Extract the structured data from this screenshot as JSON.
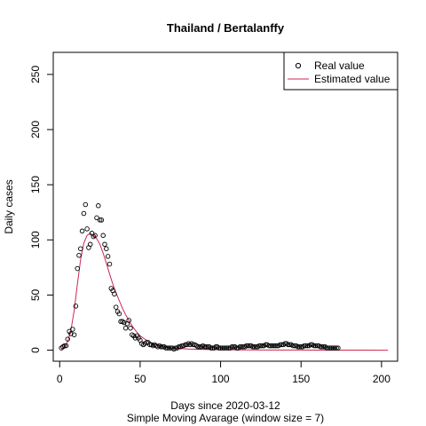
{
  "chart_data": {
    "type": "scatter",
    "title": "Thailand / Bertalanffy",
    "xlabel": "Days since 2020-03-12",
    "xlabel2": "Simple Moving Avarage (window size = 7)",
    "ylabel": "Daily cases",
    "xlim": [
      -4,
      210
    ],
    "ylim": [
      -10,
      270
    ],
    "xticks": [
      0,
      50,
      100,
      150,
      200
    ],
    "yticks": [
      0,
      50,
      100,
      150,
      200,
      250
    ],
    "grid": false,
    "legend_position": "top-right",
    "series": [
      {
        "name": "Real value",
        "style": "points",
        "color": "#000000",
        "x": [
          1,
          2,
          3,
          4,
          5,
          6,
          7,
          8,
          9,
          10,
          11,
          12,
          13,
          14,
          15,
          16,
          17,
          18,
          19,
          20,
          21,
          22,
          23,
          24,
          25,
          26,
          27,
          28,
          29,
          30,
          31,
          32,
          33,
          34,
          35,
          36,
          37,
          38,
          39,
          40,
          41,
          42,
          43,
          44,
          45,
          46,
          47,
          48,
          49,
          50,
          51,
          52,
          53,
          54,
          55,
          56,
          57,
          58,
          59,
          60,
          61,
          62,
          63,
          64,
          65,
          66,
          67,
          68,
          69,
          70,
          71,
          72,
          73,
          74,
          75,
          76,
          77,
          78,
          79,
          80,
          81,
          82,
          83,
          84,
          85,
          86,
          87,
          88,
          89,
          90,
          91,
          92,
          93,
          94,
          95,
          96,
          97,
          98,
          99,
          100,
          101,
          102,
          103,
          104,
          105,
          106,
          107,
          108,
          109,
          110,
          111,
          112,
          113,
          114,
          115,
          116,
          117,
          118,
          119,
          120,
          121,
          122,
          123,
          124,
          125,
          126,
          127,
          128,
          129,
          130,
          131,
          132,
          133,
          134,
          135,
          136,
          137,
          138,
          139,
          140,
          141,
          142,
          143,
          144,
          145,
          146,
          147,
          148,
          149,
          150,
          151,
          152,
          153,
          154,
          155,
          156,
          157,
          158,
          159,
          160,
          161,
          162,
          163,
          164,
          165,
          166,
          167,
          168,
          169,
          170,
          171,
          172,
          173
        ],
        "y": [
          2,
          3,
          4,
          4,
          10,
          17,
          15,
          19,
          14,
          40,
          74,
          86,
          92,
          108,
          124,
          132,
          110,
          93,
          96,
          106,
          103,
          104,
          120,
          131,
          118,
          118,
          104,
          96,
          92,
          85,
          78,
          56,
          54,
          51,
          39,
          35,
          33,
          26,
          26,
          25,
          20,
          24,
          27,
          20,
          14,
          13,
          11,
          13,
          11,
          9,
          6,
          5,
          6,
          7,
          7,
          5,
          5,
          4,
          5,
          4,
          3,
          4,
          3,
          3,
          3,
          2,
          2,
          2,
          2,
          2,
          1,
          2,
          2,
          3,
          3,
          4,
          4,
          5,
          5,
          6,
          5,
          6,
          5,
          5,
          4,
          3,
          3,
          3,
          4,
          3,
          3,
          3,
          3,
          2,
          2,
          2,
          3,
          3,
          2,
          2,
          2,
          2,
          2,
          2,
          2,
          2,
          3,
          3,
          3,
          2,
          2,
          3,
          3,
          3,
          3,
          4,
          4,
          4,
          4,
          3,
          3,
          3,
          3,
          4,
          4,
          4,
          4,
          5,
          5,
          4,
          4,
          4,
          4,
          4,
          4,
          4,
          5,
          5,
          5,
          6,
          6,
          5,
          5,
          5,
          4,
          4,
          4,
          3,
          3,
          3,
          3,
          4,
          4,
          4,
          4,
          5,
          5,
          4,
          4,
          4,
          4,
          3,
          3,
          3,
          3,
          2,
          2,
          2,
          2,
          2,
          2,
          2,
          2
        ]
      },
      {
        "name": "Estimated value",
        "style": "line",
        "color": "#cd2650",
        "x": [
          1,
          3,
          5,
          7,
          9,
          11,
          13,
          15,
          17,
          19,
          21,
          23,
          25,
          27,
          29,
          31,
          33,
          35,
          37,
          39,
          41,
          43,
          45,
          47,
          50,
          53,
          56,
          60,
          65,
          70,
          75,
          80,
          90,
          100,
          110,
          120,
          130,
          140,
          150,
          160,
          170,
          180,
          190,
          200,
          204
        ],
        "y": [
          1,
          3,
          8,
          18,
          36,
          60,
          82,
          97,
          104,
          106,
          104,
          101,
          96,
          88,
          79,
          69,
          60,
          52,
          45,
          38,
          32,
          27,
          22,
          18,
          13,
          10,
          7,
          5,
          3,
          2,
          1.5,
          1,
          0.6,
          0.4,
          0.3,
          0.2,
          0.15,
          0.1,
          0.1,
          0.05,
          0.05,
          0.03,
          0.02,
          0.01,
          0.01
        ]
      }
    ]
  }
}
